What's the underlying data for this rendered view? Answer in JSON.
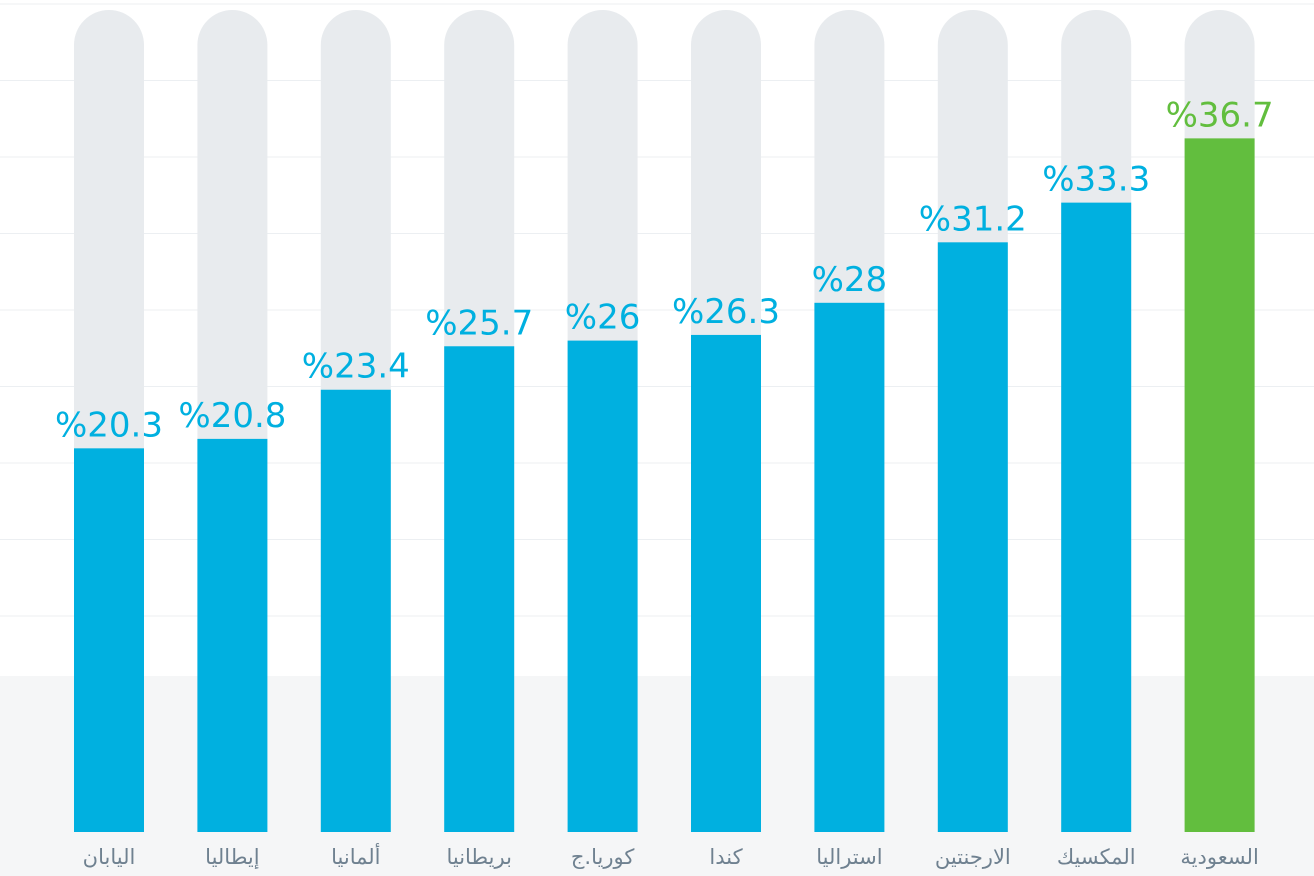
{
  "chart_data": {
    "type": "bar",
    "categories": [
      "اليابان",
      "إيطاليا",
      "ألمانيا",
      "بريطانيا",
      "كوريا.ج",
      "كندا",
      "استراليا",
      "الارجنتين",
      "المكسيك",
      "السعودية"
    ],
    "values": [
      20.3,
      20.8,
      23.4,
      25.7,
      26,
      26.3,
      28,
      31.2,
      33.3,
      36.7
    ],
    "value_labels": [
      "%20.3",
      "%20.8",
      "%23.4",
      "%25.7",
      "%26",
      "%26.3",
      "%28",
      "%31.2",
      "%33.3",
      "%36.7"
    ],
    "highlight_index": 9,
    "ylim": [
      0,
      44
    ],
    "grid": true,
    "colors": {
      "bar": "#00b0e0",
      "highlight": "#62be3e",
      "track": "#e8ebee",
      "grid": "#eceff2",
      "category_text": "#6f8190"
    }
  }
}
